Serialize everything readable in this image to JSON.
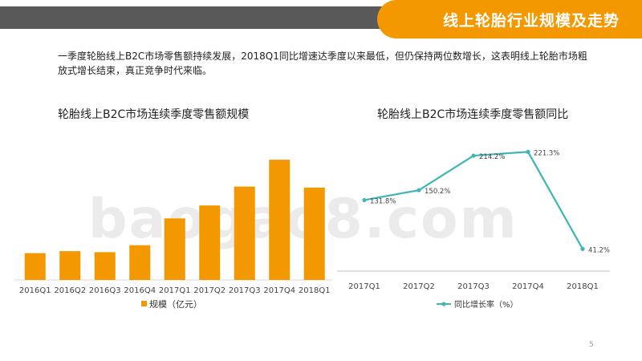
{
  "header": {
    "title": "线上轮胎行业规模及走势"
  },
  "intro_text": "一季度轮胎线上B2C市场零售额持续发展，2018Q1同比增速达季度以来最低，但仍保持两位数增长，这表明线上轮胎市场粗放式增长结束，真正竞争时代来临。",
  "watermark": "baogao8.com",
  "page_number": "5",
  "colors": {
    "accent": "#F39800",
    "dark_bar": "#595959",
    "line": "#3DB6B4"
  },
  "chart_data": [
    {
      "type": "bar",
      "title": "轮胎线上B2C市场连续季度零售额规模",
      "categories": [
        "2016Q1",
        "2016Q2",
        "2016Q3",
        "2016Q4",
        "2017Q1",
        "2017Q2",
        "2017Q3",
        "2017Q4",
        "2018Q1"
      ],
      "series": [
        {
          "name": "规模（亿元）",
          "values": [
            2.7,
            2.9,
            2.8,
            3.5,
            6.2,
            7.5,
            9.4,
            12.1,
            9.3
          ]
        }
      ],
      "ylim": [
        0,
        13
      ],
      "legend": "bottom"
    },
    {
      "type": "line",
      "title": "轮胎线上B2C市场连续季度零售额同比",
      "categories": [
        "2017Q1",
        "2017Q2",
        "2017Q3",
        "2017Q4",
        "2018Q1"
      ],
      "series": [
        {
          "name": "同比增长率（%）",
          "values": [
            131.8,
            150.2,
            214.2,
            221.3,
            41.2
          ],
          "labels": [
            "131.8%",
            "150.2%",
            "214.2%",
            "221.3%",
            "41.2%"
          ]
        }
      ],
      "ylim": [
        0,
        250
      ],
      "legend": "bottom"
    }
  ]
}
